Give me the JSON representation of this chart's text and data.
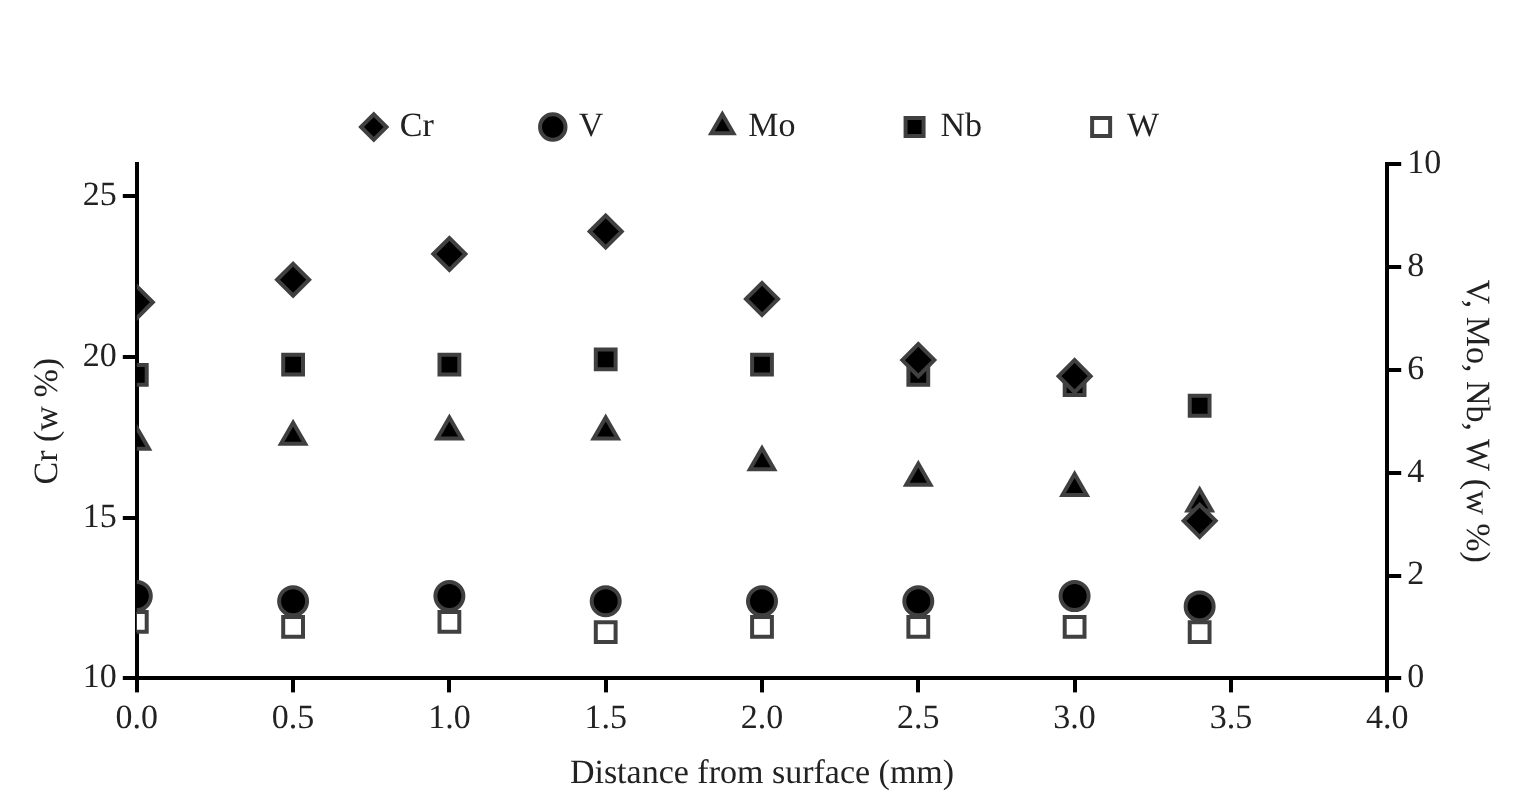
{
  "chart_data": {
    "type": "scatter",
    "xlabel": "Distance from surface (mm)",
    "ylabel": "Cr (w %)",
    "y2label": "V, Mo, Nb, W (w %)",
    "x": [
      0,
      0.5,
      1,
      1.5,
      2,
      2.5,
      3,
      3.4
    ],
    "series": [
      {
        "name": "Cr",
        "color": "#000000",
        "marker": "diamond",
        "values": [
          21.7,
          22.4,
          23.2,
          23.9,
          21.8,
          19.9,
          19.4,
          14.9
        ]
      },
      {
        "name": "V",
        "color": "#000000",
        "marker": "circle",
        "axis": "y2",
        "values": [
          1.6,
          1.5,
          1.6,
          1.5,
          1.5,
          1.5,
          1.6,
          1.4
        ]
      },
      {
        "name": "Mo",
        "color": "#000000",
        "marker": "triangle",
        "axis": "y2",
        "values": [
          4.6,
          4.7,
          4.8,
          4.8,
          4.2,
          3.9,
          3.7,
          3.4
        ]
      },
      {
        "name": "Nb",
        "color": "#000000",
        "marker": "square",
        "axis": "y2",
        "values": [
          5.9,
          6.1,
          6.1,
          6.2,
          6.1,
          5.9,
          5.7,
          5.3
        ]
      },
      {
        "name": "W",
        "color": "#ffffff",
        "marker": "square",
        "axis": "y2",
        "values": [
          1.1,
          1.0,
          1.1,
          0.9,
          1.0,
          1.0,
          1.0,
          0.9
        ]
      }
    ],
    "xlim": [
      0,
      4
    ],
    "xticks": [
      {
        "value": 0,
        "label": "0.0"
      },
      0.5,
      {
        "value": 1,
        "label": "1.0"
      },
      1.5,
      {
        "value": 2,
        "label": "2.0"
      },
      2.5,
      {
        "value": 3,
        "label": "3.0"
      },
      3.5,
      {
        "value": 4,
        "label": "4.0"
      }
    ],
    "ylim": [
      10,
      26
    ],
    "yticks": [
      10,
      15,
      20,
      25
    ],
    "y2lim": [
      0,
      10
    ],
    "y2ticks": [
      0,
      2,
      4,
      6,
      8,
      10
    ],
    "grid": false,
    "legend": "top"
  }
}
